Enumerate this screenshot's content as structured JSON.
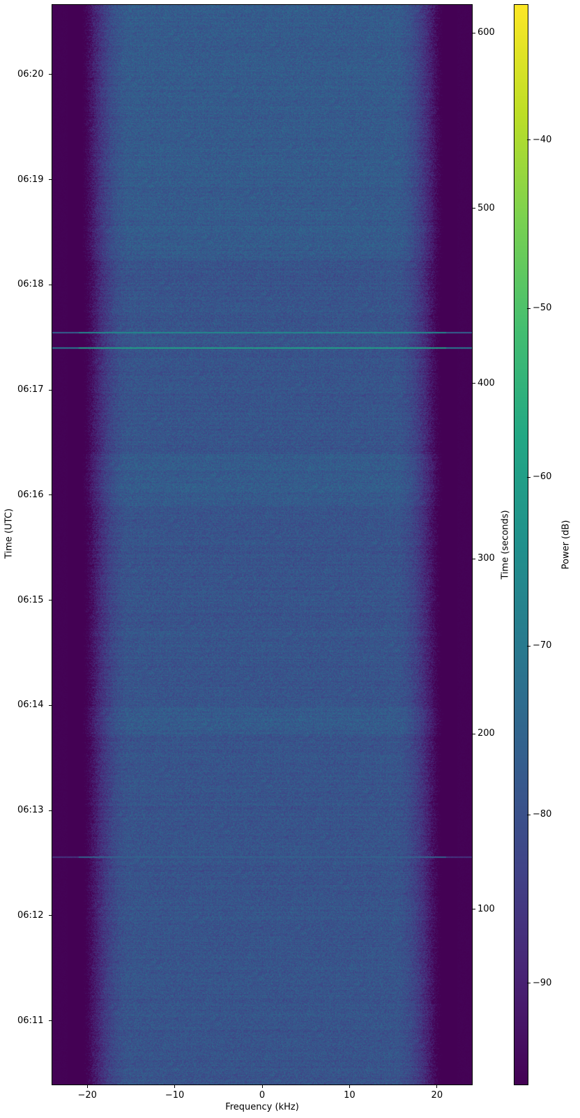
{
  "chart_data": {
    "type": "heatmap",
    "subtype": "spectrogram",
    "xlabel": "Frequency (kHz)",
    "ylabel_left": "Time (UTC)",
    "ylabel_right": "Time (seconds)",
    "colorbar_label": "Power (dB)",
    "colormap": "viridis",
    "xlim": [
      -24,
      24
    ],
    "ylim_seconds": [
      0,
      616
    ],
    "clim": [
      -96,
      -32
    ],
    "x_ticks": [
      -20,
      -10,
      0,
      10,
      20
    ],
    "x_tick_labels": [
      "−20",
      "−10",
      "0",
      "10",
      "20"
    ],
    "y_right_ticks": [
      100,
      200,
      300,
      400,
      500,
      600
    ],
    "y_right_tick_labels": [
      "100",
      "200",
      "300",
      "400",
      "500",
      "600"
    ],
    "y_left_ticks": [
      {
        "label": "06:11",
        "seconds": 36.3
      },
      {
        "label": "06:12",
        "seconds": 96.3
      },
      {
        "label": "06:13",
        "seconds": 156.3
      },
      {
        "label": "06:14",
        "seconds": 216.3
      },
      {
        "label": "06:15",
        "seconds": 276.3
      },
      {
        "label": "06:16",
        "seconds": 336.3
      },
      {
        "label": "06:17",
        "seconds": 396.3
      },
      {
        "label": "06:18",
        "seconds": 456.3
      },
      {
        "label": "06:19",
        "seconds": 516.3
      },
      {
        "label": "06:20",
        "seconds": 576.3
      }
    ],
    "colorbar_ticks": [
      -90,
      -80,
      -70,
      -60,
      -50,
      -40
    ],
    "colorbar_tick_labels": [
      "−90",
      "−80",
      "−70",
      "−60",
      "−50",
      "−40"
    ],
    "noise_floor_db": -79,
    "band_edge_khz": 20,
    "out_of_band_db": -96,
    "bright_lines": [
      {
        "seconds": 420.4,
        "power_db": -60
      },
      {
        "seconds": 429.3,
        "power_db": -66
      },
      {
        "seconds": 130.0,
        "power_db": -76
      }
    ],
    "brighter_periods_seconds": [
      [
        200,
        215
      ],
      [
        330,
        360
      ],
      [
        470,
        616
      ]
    ]
  }
}
